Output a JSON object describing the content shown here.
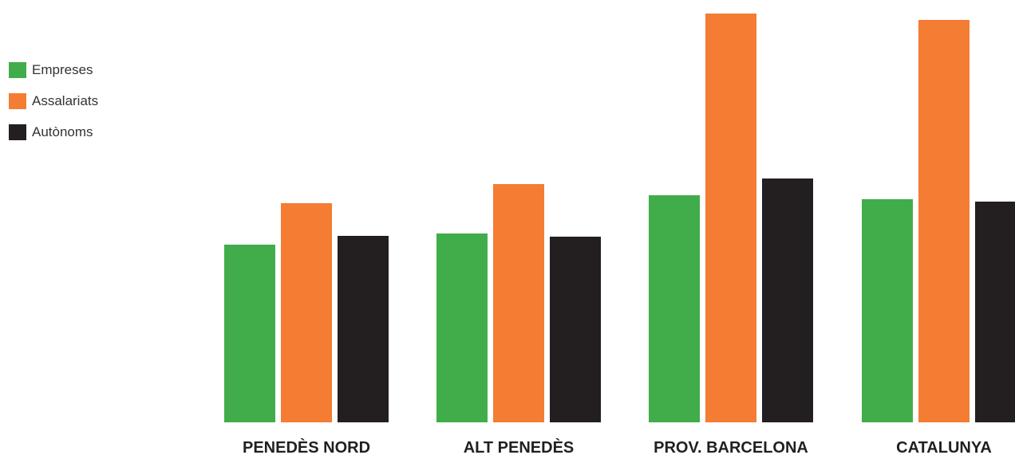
{
  "chart_data": {
    "type": "bar",
    "categories": [
      "PENEDÈS NORD",
      "ALT PENEDÈS",
      "PROV. BARCELONA",
      "CATALUNYA"
    ],
    "series": [
      {
        "name": "Empreses",
        "color": "#41ad4a",
        "values": [
          223,
          237,
          285,
          280
        ]
      },
      {
        "name": "Assalariats",
        "color": "#f47c33",
        "values": [
          275,
          299,
          513,
          505
        ]
      },
      {
        "name": "Autònoms",
        "color": "#231f20",
        "values": [
          234,
          233,
          306,
          277
        ]
      }
    ],
    "ylim": [
      0,
      513
    ],
    "legend_position": "top-left",
    "grid": false,
    "title": "",
    "xlabel": "",
    "ylabel": ""
  }
}
